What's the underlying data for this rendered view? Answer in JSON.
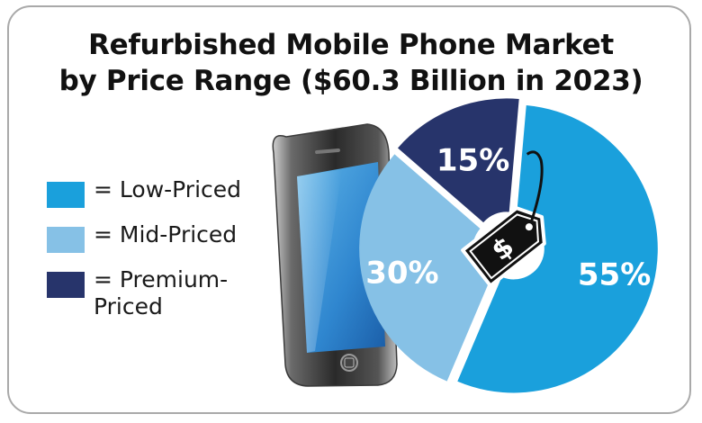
{
  "title": {
    "line1": "Refurbished Mobile Phone Market",
    "line2": "by Price Range ($60.3 Billion in 2023)"
  },
  "chart_data": {
    "type": "pie",
    "title": "Refurbished Mobile Phone Market by Price Range ($60.3 Billion in 2023)",
    "categories": [
      "Low-Priced",
      "Mid-Priced",
      "Premium-Priced"
    ],
    "values": [
      55,
      30,
      15
    ],
    "labels": [
      "55%",
      "30%",
      "15%"
    ],
    "unit": "%",
    "colors": [
      "#1aa0dc",
      "#86c1e6",
      "#27346b"
    ],
    "legend_placement": "left"
  },
  "legend": [
    {
      "prefix": "=",
      "label": "Low-Priced",
      "color": "#1aa0dc"
    },
    {
      "prefix": "=",
      "label": "Mid-Priced",
      "color": "#86c1e6"
    },
    {
      "prefix": "=",
      "label": "Premium-Priced",
      "label_line1": "Premium-",
      "label_line2": "Priced",
      "color": "#27346b"
    }
  ],
  "icons": [
    "smartphone-icon",
    "price-tag-icon",
    "dollar-sign-icon"
  ]
}
